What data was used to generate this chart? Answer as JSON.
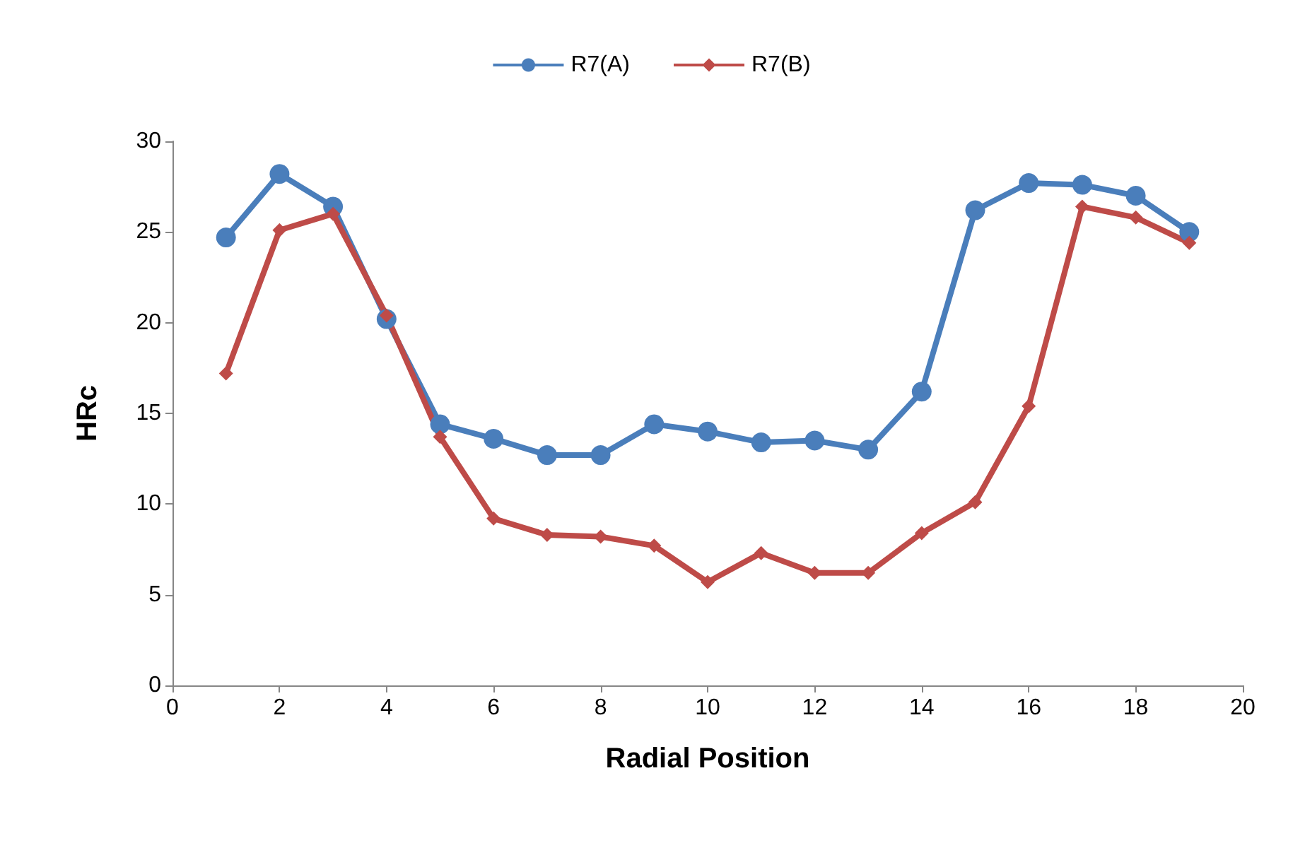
{
  "chart_data": {
    "type": "line",
    "xlabel": "Radial Position",
    "ylabel": "HRc",
    "x": [
      1,
      2,
      3,
      4,
      5,
      6,
      7,
      8,
      9,
      10,
      11,
      12,
      13,
      14,
      15,
      16,
      17,
      18,
      19
    ],
    "xlim": [
      0,
      20
    ],
    "xticks": [
      0,
      2,
      4,
      6,
      8,
      10,
      12,
      14,
      16,
      18,
      20
    ],
    "ylim": [
      0,
      30
    ],
    "yticks": [
      0,
      5,
      10,
      15,
      20,
      25,
      30
    ],
    "grid": false,
    "legend": "top",
    "line_style": "solid",
    "series": [
      {
        "name": "R7(A)",
        "color": "#4a7ebb",
        "marker": "circle",
        "values": [
          24.7,
          28.2,
          26.4,
          20.2,
          14.4,
          13.6,
          12.7,
          12.7,
          14.4,
          14.0,
          13.4,
          13.5,
          13.0,
          16.2,
          26.2,
          27.7,
          27.6,
          27.0,
          25.0
        ]
      },
      {
        "name": "R7(B)",
        "color": "#be4b48",
        "marker": "diamond",
        "values": [
          17.2,
          25.1,
          26.0,
          20.4,
          13.7,
          9.2,
          8.3,
          8.2,
          7.7,
          5.7,
          7.3,
          6.2,
          6.2,
          8.4,
          10.1,
          15.4,
          26.4,
          25.8,
          24.4
        ]
      }
    ]
  }
}
